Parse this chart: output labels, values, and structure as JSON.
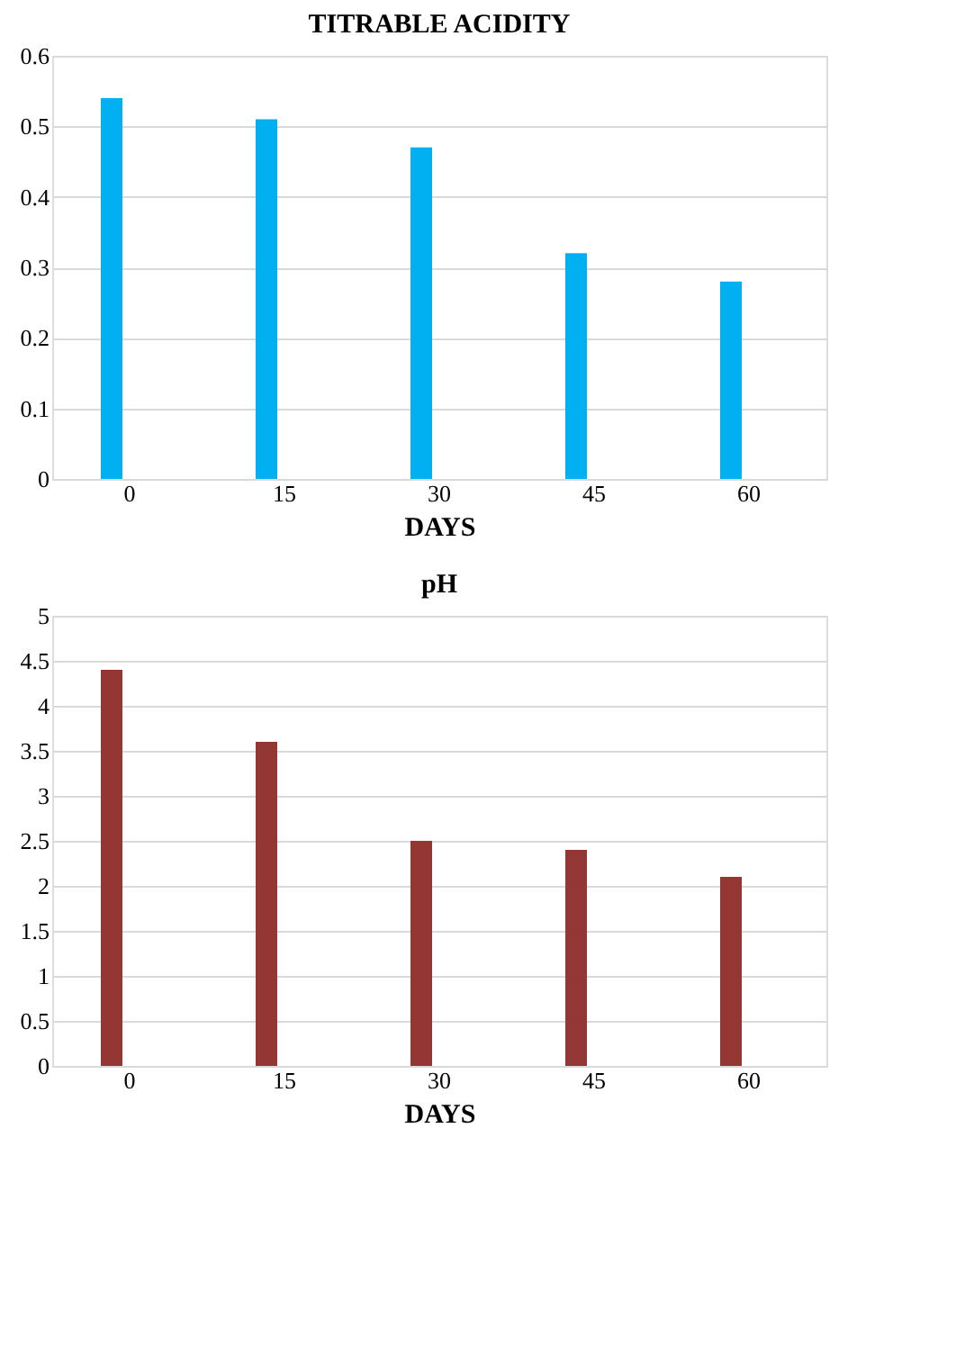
{
  "chart_data": [
    {
      "type": "bar",
      "title": "TITRABLE ACIDITY",
      "xlabel": "DAYS",
      "categories": [
        "0",
        "15",
        "30",
        "45",
        "60"
      ],
      "values": [
        0.54,
        0.51,
        0.47,
        0.32,
        0.28
      ],
      "color": "#00b0f0",
      "ylim": [
        0,
        0.6
      ],
      "yticks": [
        {
          "value": 0,
          "label": "0"
        },
        0.1,
        0.2,
        0.3,
        0.4,
        0.5,
        0.6
      ],
      "grid": "y"
    },
    {
      "type": "bar",
      "title": "pH",
      "xlabel": "DAYS",
      "categories": [
        "0",
        "15",
        "30",
        "45",
        "60"
      ],
      "values": [
        4.4,
        3.6,
        2.5,
        2.4,
        2.1
      ],
      "color": "#943634",
      "ylim": [
        0,
        5
      ],
      "yticks": [
        0,
        0.5,
        1,
        1.5,
        2,
        2.5,
        3,
        3.5,
        4,
        4.5,
        5
      ],
      "grid": "y"
    }
  ]
}
